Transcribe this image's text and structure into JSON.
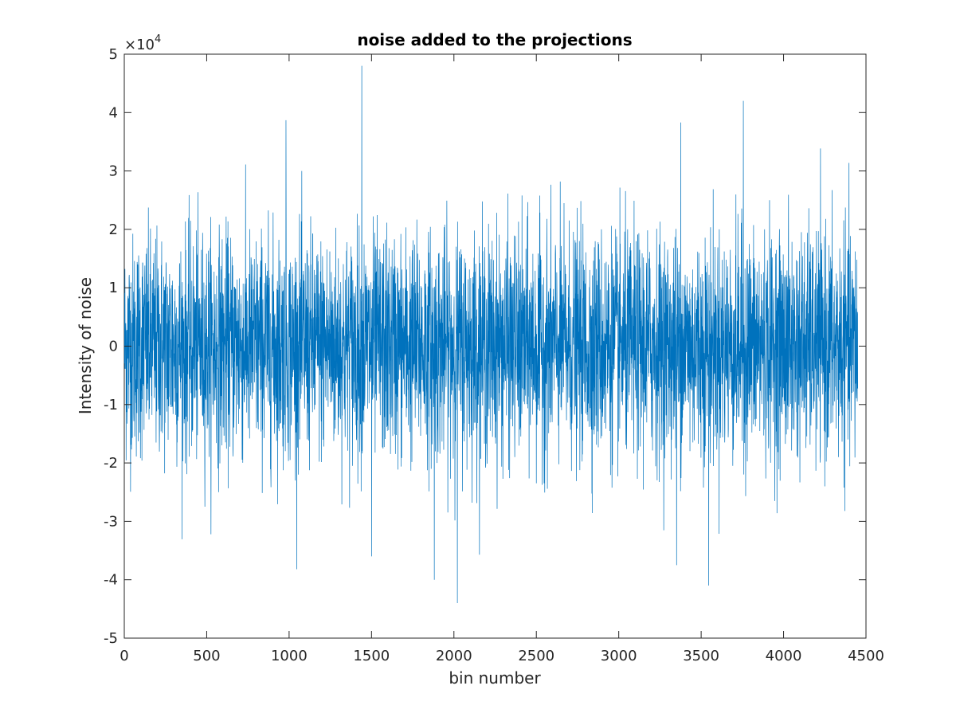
{
  "chart_data": {
    "type": "line",
    "title": "noise added to the projections",
    "xlabel": "bin number",
    "ylabel": "Intensity of noise",
    "xlim": [
      0,
      4500
    ],
    "ylim": [
      -50000,
      50000
    ],
    "x_ticks": [
      0,
      500,
      1000,
      1500,
      2000,
      2500,
      3000,
      3500,
      4000,
      4500
    ],
    "x_tick_labels": [
      "0",
      "500",
      "1000",
      "1500",
      "2000",
      "2500",
      "3000",
      "3500",
      "4000",
      "4500"
    ],
    "y_ticks": [
      -5,
      -4,
      -3,
      -2,
      -1,
      0,
      1,
      2,
      3,
      4,
      5
    ],
    "y_tick_labels": [
      "-5",
      "-4",
      "-3",
      "-2",
      "-1",
      "0",
      "1",
      "2",
      "3",
      "4",
      "5"
    ],
    "y_exponent_base": "×10",
    "y_exponent_power": "4",
    "grid": false,
    "line_color": "#0072BD",
    "series": [
      {
        "n_points": 4450,
        "distribution": "approximately gaussian noise centered at 0",
        "std_dev": 9500,
        "min": -44000,
        "max": 48000,
        "notable_peaks": [
          {
            "x": 1440,
            "y": 48000
          },
          {
            "x": 3755,
            "y": 42000
          },
          {
            "x": 980,
            "y": 38700
          },
          {
            "x": 3375,
            "y": 38300
          },
          {
            "x": 2020,
            "y": -44000
          },
          {
            "x": 3545,
            "y": -41000
          },
          {
            "x": 1880,
            "y": -40000
          },
          {
            "x": 3350,
            "y": -37500
          },
          {
            "x": 1500,
            "y": -36000
          }
        ]
      }
    ]
  }
}
